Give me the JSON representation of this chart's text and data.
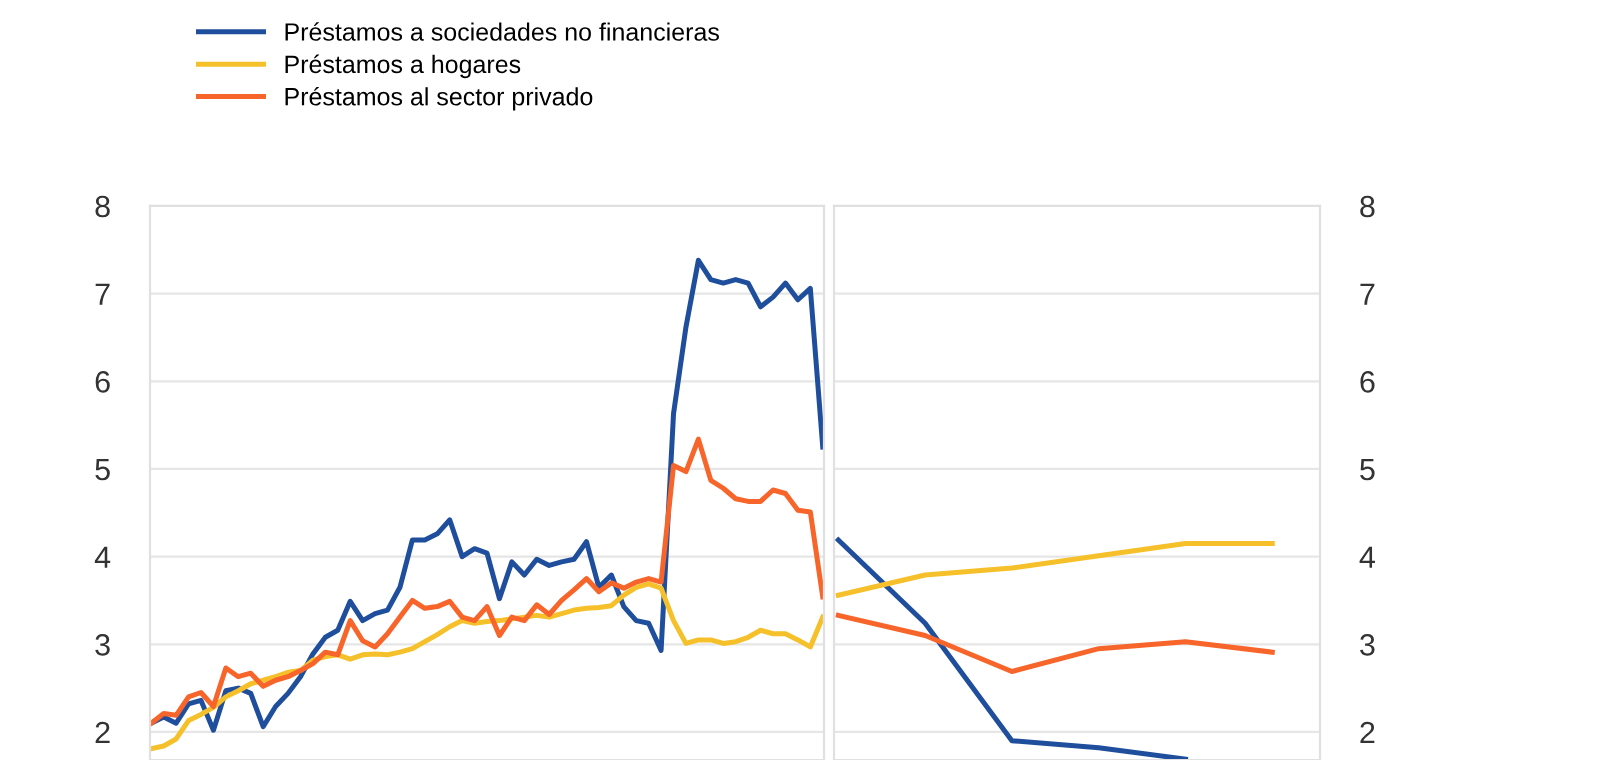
{
  "chart_data": [
    {
      "type": "line",
      "legend": "top left",
      "grid": "y",
      "tick_labels": "y",
      "ylim": [
        1.68,
        8
      ],
      "yticks": [
        2,
        3,
        4,
        5,
        6,
        7,
        8
      ],
      "line_style": "solid",
      "categories": [
        null,
        null,
        null,
        null,
        null,
        null,
        null,
        null,
        null,
        null,
        null,
        null,
        null,
        null,
        null,
        null,
        null,
        null,
        null,
        null,
        null,
        null,
        null,
        null,
        null,
        null,
        null,
        null,
        null,
        null,
        null,
        null,
        null,
        null,
        null,
        null,
        null,
        null,
        null,
        null,
        null,
        null,
        null,
        null,
        null,
        null,
        null,
        null,
        null,
        null,
        null,
        null,
        null,
        null,
        null
      ],
      "series": [
        {
          "name": "Préstamos a sociedades no financieras",
          "color": "#1f4e9c",
          "values": [
            2.1,
            2.17,
            2.1,
            2.32,
            2.36,
            2.02,
            2.47,
            2.5,
            2.44,
            2.06,
            2.29,
            2.44,
            2.63,
            2.89,
            3.08,
            3.16,
            3.49,
            3.27,
            3.35,
            3.39,
            3.65,
            4.19,
            4.19,
            4.26,
            4.42,
            4.0,
            4.09,
            4.04,
            3.52,
            3.94,
            3.79,
            3.97,
            3.9,
            3.94,
            3.97,
            4.17,
            3.65,
            3.79,
            3.43,
            3.27,
            3.24,
            2.93,
            5.63,
            6.62,
            7.38,
            7.16,
            7.12,
            7.16,
            7.12,
            6.85,
            6.96,
            7.12,
            6.93,
            7.06,
            5.25
          ]
        },
        {
          "name": "Préstamos a hogares",
          "color": "#f5c02a",
          "values": [
            1.81,
            1.84,
            1.92,
            2.13,
            2.2,
            2.28,
            2.4,
            2.47,
            2.55,
            2.59,
            2.63,
            2.68,
            2.7,
            2.82,
            2.86,
            2.88,
            2.83,
            2.88,
            2.89,
            2.88,
            2.91,
            2.95,
            3.03,
            3.11,
            3.2,
            3.27,
            3.24,
            3.26,
            3.27,
            3.29,
            3.31,
            3.33,
            3.31,
            3.35,
            3.39,
            3.41,
            3.42,
            3.44,
            3.56,
            3.65,
            3.69,
            3.64,
            3.27,
            3.01,
            3.05,
            3.05,
            3.01,
            3.03,
            3.08,
            3.16,
            3.12,
            3.12,
            3.05,
            2.97,
            3.31
          ]
        },
        {
          "name": "Préstamos al sector privado",
          "color": "#f7652a",
          "values": [
            2.1,
            2.21,
            2.19,
            2.4,
            2.45,
            2.29,
            2.73,
            2.63,
            2.67,
            2.52,
            2.59,
            2.63,
            2.7,
            2.78,
            2.91,
            2.88,
            3.27,
            3.04,
            2.97,
            3.12,
            3.31,
            3.5,
            3.41,
            3.43,
            3.49,
            3.31,
            3.27,
            3.43,
            3.1,
            3.31,
            3.27,
            3.45,
            3.34,
            3.5,
            3.62,
            3.75,
            3.6,
            3.7,
            3.64,
            3.71,
            3.75,
            3.71,
            5.04,
            4.97,
            5.34,
            4.87,
            4.78,
            4.66,
            4.63,
            4.63,
            4.76,
            4.72,
            4.53,
            4.51,
            3.54
          ]
        }
      ]
    },
    {
      "type": "line",
      "grid": "y",
      "tick_labels": "y",
      "ylim": [
        1.68,
        8
      ],
      "yticks": [
        2,
        3,
        4,
        5,
        6,
        7,
        8
      ],
      "line_style": "solid",
      "categories": [
        null,
        null,
        null,
        null,
        null,
        null
      ],
      "series": [
        {
          "color": "#1f4e9c",
          "values": [
            4.19,
            3.24,
            1.9,
            1.82,
            1.69,
            null
          ]
        },
        {
          "color": "#f5c02a",
          "values": [
            3.56,
            3.79,
            3.87,
            4.01,
            4.15,
            4.15
          ]
        },
        {
          "color": "#f7652a",
          "values": [
            3.33,
            3.1,
            2.69,
            2.95,
            3.03,
            2.91
          ]
        }
      ]
    }
  ]
}
